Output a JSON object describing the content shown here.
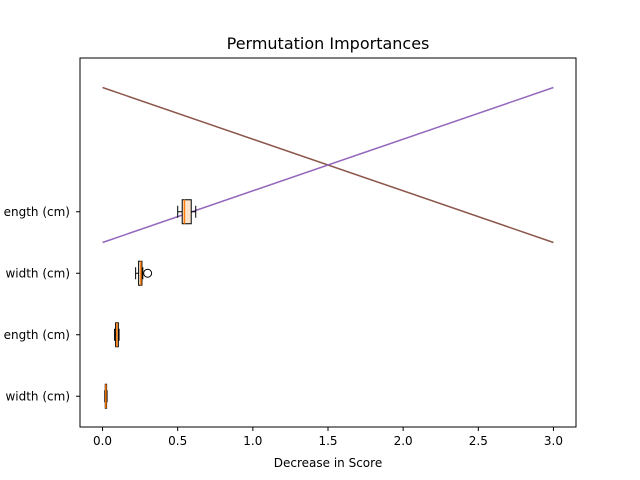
{
  "chart_data": {
    "type": "box",
    "orientation": "horizontal",
    "title": "Permutation Importances",
    "xlabel": "Decrease in Score",
    "ylabel": "",
    "xlim": [
      -0.15,
      3.15
    ],
    "x_ticks": [
      0.0,
      0.5,
      1.0,
      1.5,
      2.0,
      2.5,
      3.0
    ],
    "x_tick_labels": [
      "0.0",
      "0.5",
      "1.0",
      "1.5",
      "2.0",
      "2.5",
      "3.0"
    ],
    "y_tick_labels": [
      "width (cm)",
      "ength (cm)",
      "width (cm)",
      "ength (cm)"
    ],
    "grid": false,
    "boxes": [
      {
        "label": "width (cm)",
        "whislo": 0.015,
        "q1": 0.018,
        "med": 0.022,
        "q3": 0.027,
        "whishi": 0.03,
        "fliers": []
      },
      {
        "label": "ength (cm)",
        "whislo": 0.08,
        "q1": 0.087,
        "med": 0.095,
        "q3": 0.105,
        "whishi": 0.11,
        "fliers": []
      },
      {
        "label": "width (cm)",
        "whislo": 0.22,
        "q1": 0.24,
        "med": 0.255,
        "q3": 0.262,
        "whishi": 0.268,
        "fliers": [
          0.3
        ]
      },
      {
        "label": "ength (cm)",
        "whislo": 0.5,
        "q1": 0.53,
        "med": 0.545,
        "q3": 0.59,
        "whishi": 0.62,
        "fliers": []
      }
    ],
    "box_colors": {
      "face": "#fbe3cc",
      "edge": "#000000",
      "median": "#ff7f0e",
      "whisker": "#000000"
    },
    "lines": [
      {
        "x": [
          0.0,
          3.0
        ],
        "y_axes_fraction": [
          0.92,
          0.5
        ],
        "color": "#8c564b"
      },
      {
        "x": [
          0.0,
          3.0
        ],
        "y_axes_fraction": [
          0.5,
          0.92
        ],
        "color": "#9467bd"
      }
    ]
  }
}
